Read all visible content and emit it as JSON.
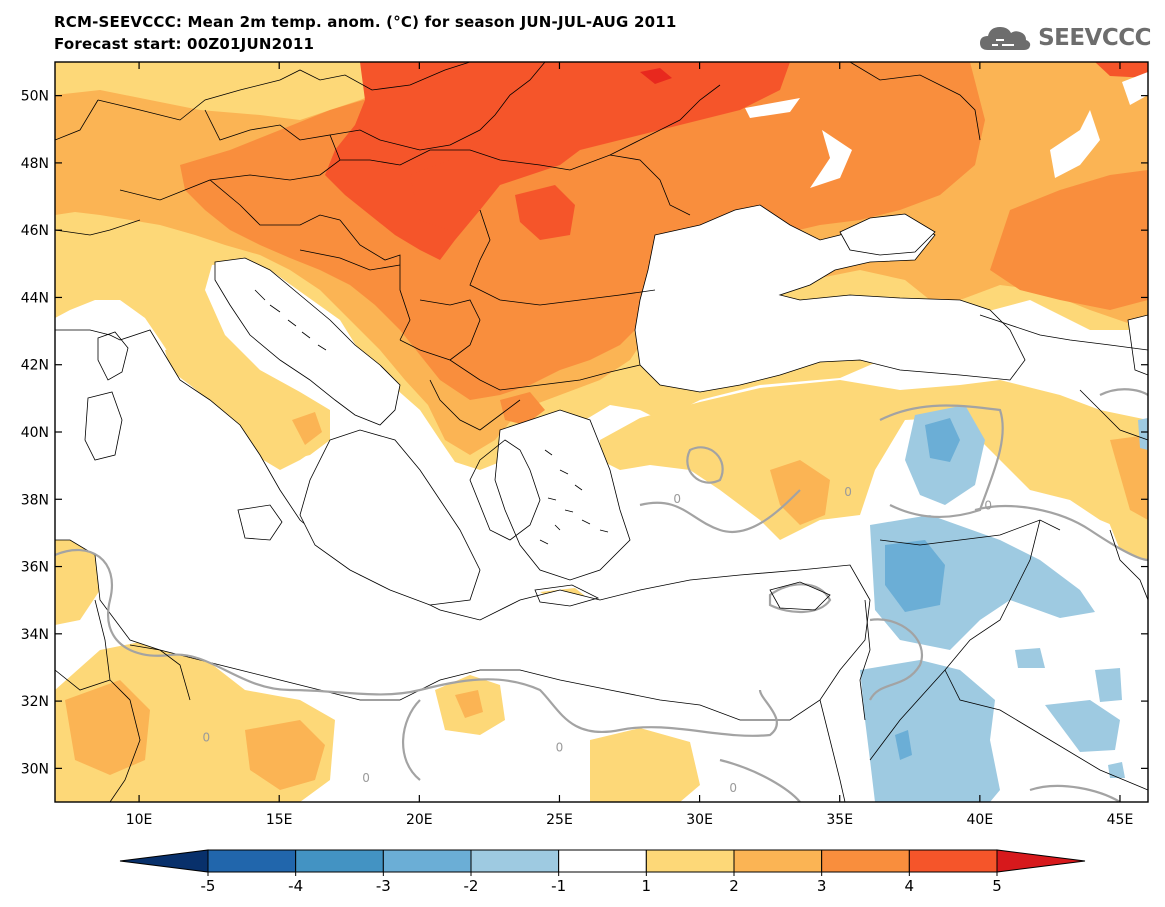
{
  "header": {
    "title_line1": "RCM-SEEVCCC: Mean 2m temp. anom. (°C) for season JUN-JUL-AUG 2011",
    "title_line2": "Forecast start: 00Z01JUN2011"
  },
  "logo": {
    "text": "SEEVCCC",
    "icon": "cloud-logo-icon"
  },
  "map": {
    "lon_range": [
      7,
      46
    ],
    "lat_range": [
      29,
      51
    ],
    "lat_ticks": [
      {
        "lat": 50,
        "label": "50N"
      },
      {
        "lat": 48,
        "label": "48N"
      },
      {
        "lat": 46,
        "label": "46N"
      },
      {
        "lat": 44,
        "label": "44N"
      },
      {
        "lat": 42,
        "label": "42N"
      },
      {
        "lat": 40,
        "label": "40N"
      },
      {
        "lat": 38,
        "label": "38N"
      },
      {
        "lat": 36,
        "label": "36N"
      },
      {
        "lat": 34,
        "label": "34N"
      },
      {
        "lat": 32,
        "label": "32N"
      },
      {
        "lat": 30,
        "label": "30N"
      }
    ],
    "lon_ticks": [
      {
        "lon": 10,
        "label": "10E"
      },
      {
        "lon": 15,
        "label": "15E"
      },
      {
        "lon": 20,
        "label": "20E"
      },
      {
        "lon": 25,
        "label": "25E"
      },
      {
        "lon": 30,
        "label": "30E"
      },
      {
        "lon": 35,
        "label": "35E"
      },
      {
        "lon": 40,
        "label": "40E"
      },
      {
        "lon": 45,
        "label": "45E"
      }
    ],
    "contour_labels": [
      {
        "lon": 12.4,
        "lat": 30.9,
        "label": "0"
      },
      {
        "lon": 18.1,
        "lat": 29.7,
        "label": "0"
      },
      {
        "lon": 25.0,
        "lat": 30.6,
        "label": "0"
      },
      {
        "lon": 29.2,
        "lat": 38.0,
        "label": "0"
      },
      {
        "lon": 31.2,
        "lat": 29.4,
        "label": "0"
      },
      {
        "lon": 35.3,
        "lat": 38.2,
        "label": "0"
      },
      {
        "lon": 40.3,
        "lat": 37.8,
        "label": "0"
      }
    ]
  },
  "colorbar": {
    "levels": [
      "-5",
      "-4",
      "-3",
      "-2",
      "-1",
      "1",
      "2",
      "3",
      "4",
      "5"
    ],
    "colors": [
      "#2166ac",
      "#4393c3",
      "#6baed6",
      "#9ecae1",
      "#ffffff",
      "#fdd878",
      "#fbb454",
      "#f98e3d",
      "#f5552a"
    ],
    "under_color": "#08306b",
    "over_color": "#d7191c"
  },
  "field_colors": {
    "plus_1_2": "#fdd878",
    "plus_2_3": "#fbb454",
    "plus_3_4": "#f98e3d",
    "plus_4_5": "#f5552a",
    "plus_above_5": "#e8281e",
    "minus_1_2": "#9ecae1",
    "minus_2_3": "#6baed6"
  }
}
